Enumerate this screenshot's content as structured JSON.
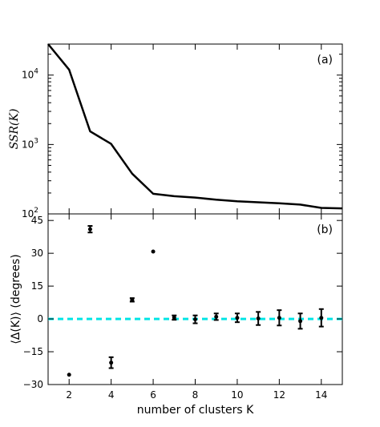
{
  "chart_data": [
    {
      "type": "line",
      "panel_label": "(a)",
      "ylabel": "SSR(K)",
      "yscale": "log",
      "ylim": [
        100,
        28000
      ],
      "xlim": [
        1,
        15
      ],
      "yticks": [
        100,
        1000,
        10000
      ],
      "ytick_labels": [
        {
          "base": "10",
          "exp": "2"
        },
        {
          "base": "10",
          "exp": "3"
        },
        {
          "base": "10",
          "exp": "4"
        }
      ],
      "legend": "none",
      "grid": false,
      "series": [
        {
          "color": "#000000",
          "x": [
            1,
            2,
            3,
            4,
            5,
            6,
            7,
            8,
            9,
            10,
            11,
            12,
            13,
            14,
            15
          ],
          "y": [
            28000,
            12000,
            1550,
            1020,
            380,
            195,
            180,
            172,
            160,
            152,
            147,
            142,
            136,
            122,
            120
          ]
        }
      ]
    },
    {
      "type": "scatter",
      "panel_label": "(b)",
      "ylabel": "⟨Δ(K)⟩ (degrees)",
      "xlabel": "number of clusters K",
      "xlim": [
        1,
        15
      ],
      "ylim": [
        -30,
        48
      ],
      "xticks": [
        "2",
        "4",
        "6",
        "8",
        "10",
        "12",
        "14"
      ],
      "yticks": [
        "−30",
        "−15",
        "0",
        "15",
        "30",
        "45"
      ],
      "legend": "none",
      "grid": false,
      "reference_line": {
        "y": 0,
        "color": "#00e5e5",
        "style": "dashed"
      },
      "points": [
        {
          "x": 2,
          "y": -25.5,
          "err": 0
        },
        {
          "x": 3,
          "y": 41,
          "err": 1.5
        },
        {
          "x": 4,
          "y": -20,
          "err": 2.5
        },
        {
          "x": 5,
          "y": 8.7,
          "err": 0.8
        },
        {
          "x": 6,
          "y": 30.8,
          "err": 0
        },
        {
          "x": 7,
          "y": 0.6,
          "err": 1
        },
        {
          "x": 8,
          "y": -0.2,
          "err": 1.8
        },
        {
          "x": 9,
          "y": 1,
          "err": 1.5
        },
        {
          "x": 10,
          "y": 0.5,
          "err": 2
        },
        {
          "x": 11,
          "y": 0.2,
          "err": 3
        },
        {
          "x": 12,
          "y": 0.5,
          "err": 3.5
        },
        {
          "x": 13,
          "y": -1,
          "err": 3.5
        },
        {
          "x": 14,
          "y": 0.5,
          "err": 4
        }
      ],
      "marker_color": "#000000"
    }
  ]
}
